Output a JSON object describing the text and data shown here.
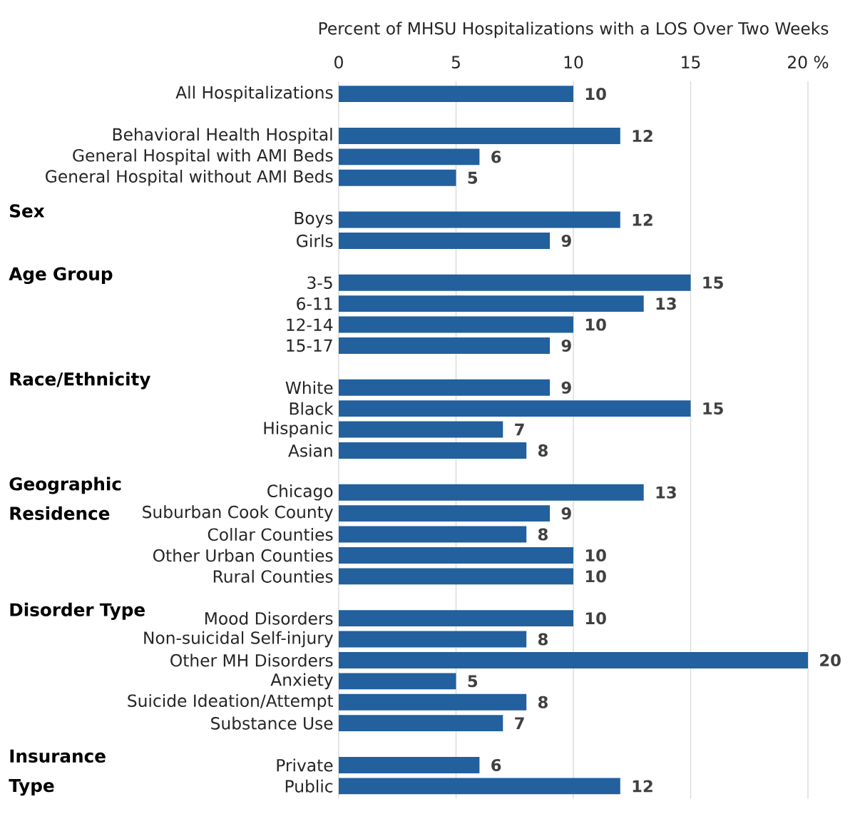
{
  "chart_data": {
    "type": "bar",
    "orientation": "horizontal",
    "xlabel": "Percent of MHSU Hospitalizations with a LOS Over Two Weeks",
    "categories": [
      "All Hospitalizations",
      null,
      "Behavioral Health Hospital",
      "General Hospital with AMI Beds",
      "General Hospital without AMI Beds",
      null,
      "Boys",
      "Girls",
      null,
      "3-5",
      "6-11",
      "12-14",
      "15-17",
      null,
      "White",
      "Black",
      "Hispanic",
      "Asian",
      null,
      "Chicago",
      "Suburban Cook County",
      "Collar Counties",
      "Other Urban Counties",
      "Rural Counties",
      null,
      "Mood Disorders",
      "Non-suicidal Self-injury",
      "Other MH Disorders",
      "Anxiety",
      "Suicide Ideation/Attempt",
      "Substance Use",
      null,
      "Private",
      "Public"
    ],
    "values": [
      10,
      null,
      12,
      6,
      5,
      null,
      12,
      9,
      null,
      15,
      13,
      10,
      9,
      null,
      9,
      15,
      7,
      8,
      null,
      13,
      9,
      8,
      10,
      10,
      null,
      10,
      8,
      20,
      5,
      8,
      7,
      null,
      6,
      12
    ],
    "color": "#22609e",
    "data_labels": true,
    "xlim": [
      0,
      20
    ],
    "xticks": [
      0,
      5,
      10,
      15,
      {
        "value": 20,
        "label": "20 %"
      }
    ],
    "grid": "x",
    "annotations": [
      "Sex",
      "Age Group",
      "Race/Ethnicity",
      "Geographic Residence",
      "Disorder Type",
      "Insurance Type"
    ]
  }
}
